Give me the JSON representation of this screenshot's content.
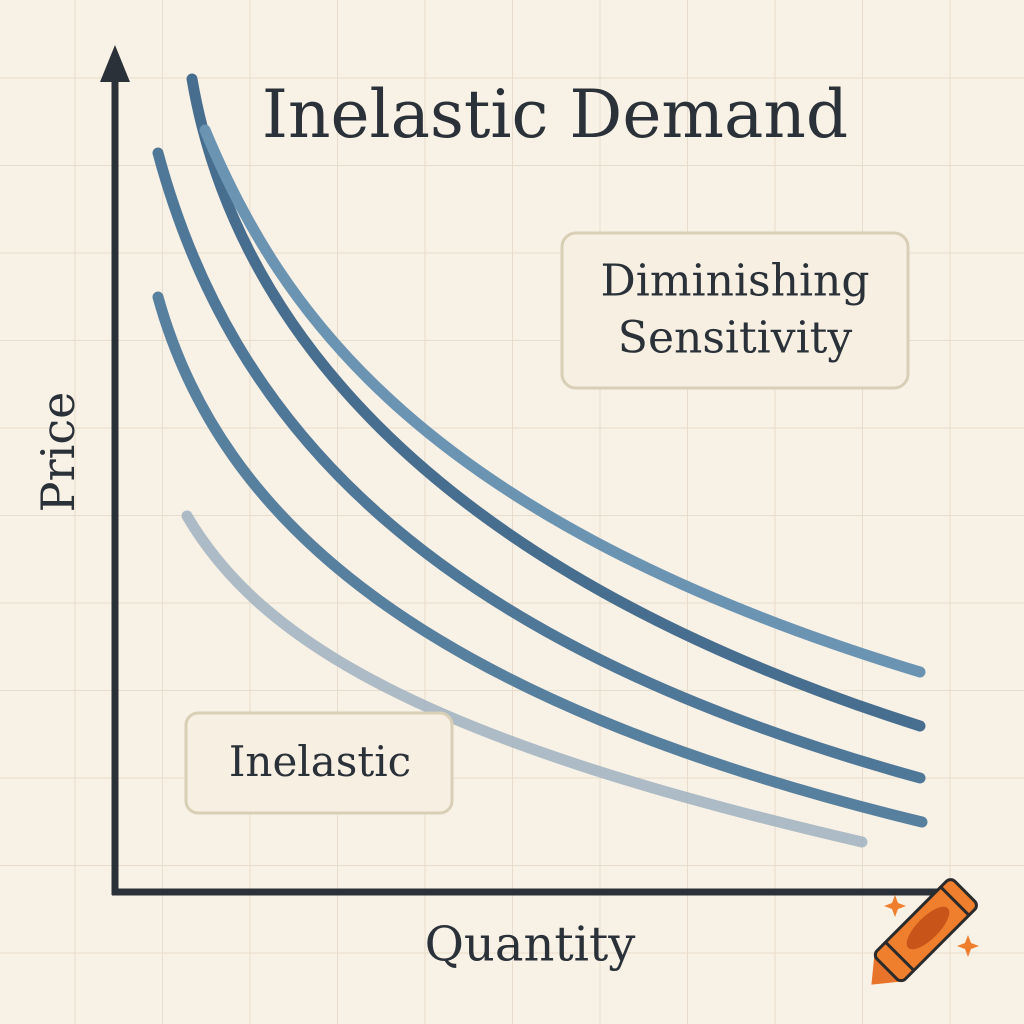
{
  "title": "Inelastic Demand",
  "axes": {
    "x_label": "Quantity",
    "y_label": "Price"
  },
  "annotations": [
    {
      "lines": [
        "Diminishing",
        "Sensitivity"
      ]
    },
    {
      "lines": [
        "Inelastic"
      ]
    }
  ]
}
